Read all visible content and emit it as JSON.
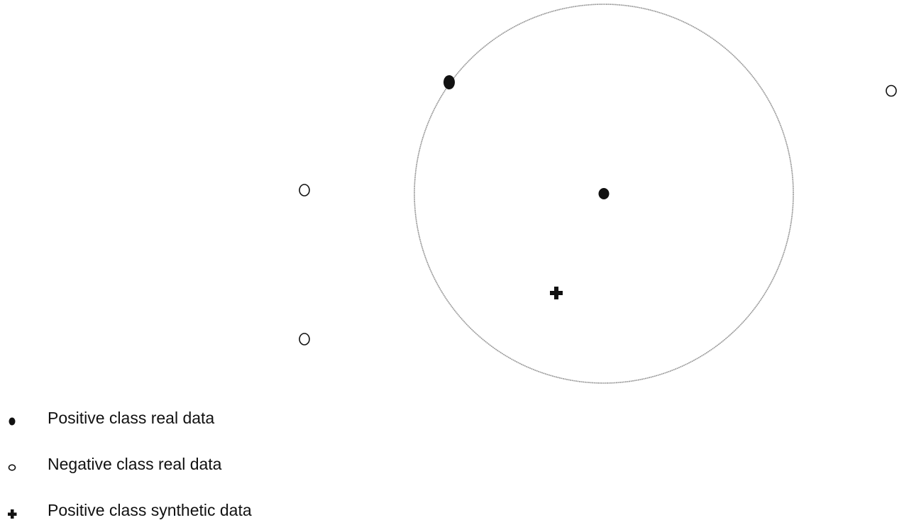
{
  "diagram": {
    "circle_stroke": "#9a9a9a",
    "point_color": "#111111",
    "points": [
      {
        "kind": "positive-real",
        "name": "positive-point-on-circle"
      },
      {
        "kind": "positive-real",
        "name": "positive-point-center"
      },
      {
        "kind": "positive-synthetic",
        "name": "synthetic-point"
      },
      {
        "kind": "negative-real",
        "name": "negative-point-left-upper"
      },
      {
        "kind": "negative-real",
        "name": "negative-point-left-lower"
      },
      {
        "kind": "negative-real",
        "name": "negative-point-right"
      }
    ]
  },
  "legend": {
    "items": [
      {
        "symbol": "filled-dot-icon",
        "label": "Positive class real data"
      },
      {
        "symbol": "hollow-dot-icon",
        "label": "Negative class real data"
      },
      {
        "symbol": "plus-icon",
        "label": "Positive class synthetic data"
      }
    ]
  }
}
